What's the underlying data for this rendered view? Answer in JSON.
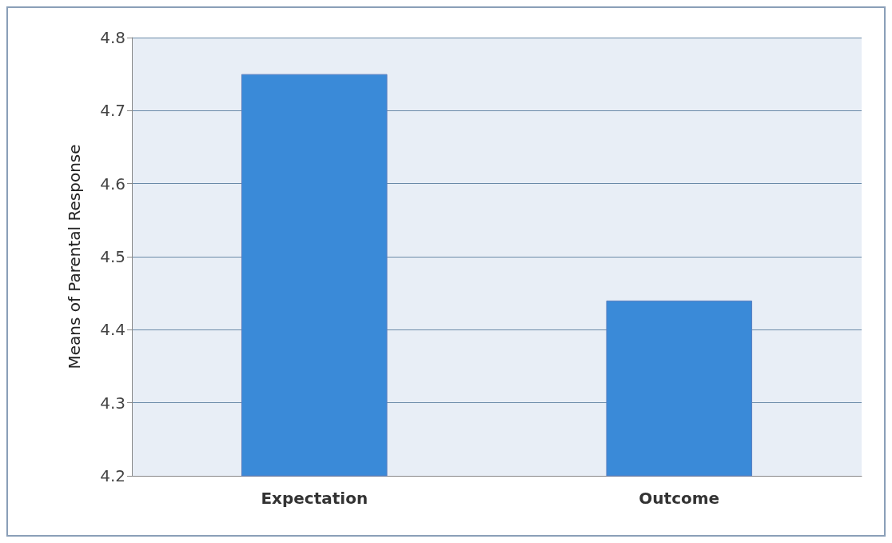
{
  "chart_data": {
    "type": "bar",
    "ylabel": "Means of Parental Response",
    "categories": [
      "Expectation",
      "Outcome"
    ],
    "values": [
      4.75,
      4.44
    ],
    "color": "#3a8ad8",
    "ylim": [
      4.2,
      4.8
    ],
    "yticks": [
      4.2,
      4.3,
      4.4,
      4.5,
      4.6,
      4.7,
      4.8
    ],
    "grid": "y"
  }
}
